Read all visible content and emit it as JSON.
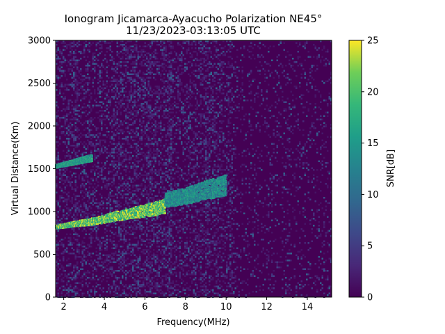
{
  "chart_data": {
    "type": "heatmap",
    "title": "Ionogram Jicamarca-Ayacucho Polarization NE45°",
    "subtitle": "11/23/2023-03:13:05 UTC",
    "xlabel": "Frequency(MHz)",
    "ylabel": "Virtual Distance(Km)",
    "xlim": [
      1.6,
      15.2
    ],
    "ylim": [
      0,
      3000
    ],
    "xticks": [
      2,
      4,
      6,
      8,
      10,
      12,
      14
    ],
    "yticks": [
      0,
      500,
      1000,
      1500,
      2000,
      2500,
      3000
    ],
    "colorbar": {
      "label": "SNR[dB]",
      "range": [
        0,
        25
      ],
      "ticks": [
        0,
        5,
        10,
        15,
        20,
        25
      ],
      "colormap": "viridis"
    },
    "traces": [
      {
        "x": [
          1.6,
          2.5,
          3.5,
          4.5,
          5.5,
          6.5,
          7.0
        ],
        "y": [
          810,
          840,
          870,
          920,
          960,
          1000,
          1030
        ],
        "snr": 24
      },
      {
        "x": [
          7.0,
          7.5,
          8.0,
          8.5,
          9.0,
          9.5,
          10.0
        ],
        "y": [
          1100,
          1120,
          1140,
          1170,
          1210,
          1230,
          1260
        ],
        "snr": 16
      },
      {
        "x": [
          1.6,
          2.0,
          2.5,
          3.0,
          3.4
        ],
        "y": [
          1520,
          1540,
          1565,
          1590,
          1610
        ],
        "snr": 18
      }
    ],
    "grid": false
  }
}
